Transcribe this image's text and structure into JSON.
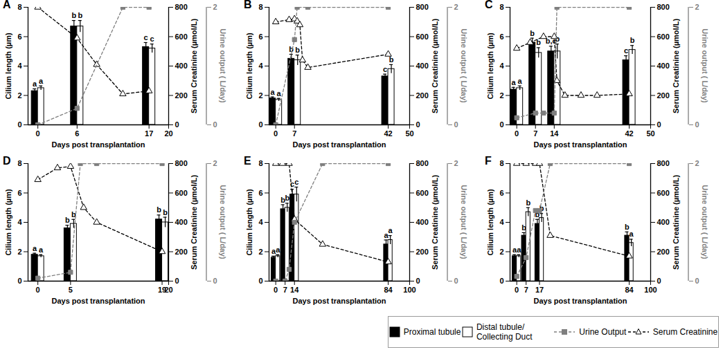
{
  "chart_data": [
    {
      "type": "bar",
      "title": "A",
      "x_label": "Days post transplantation",
      "y_label": "Cilium length (µm)",
      "y2_label": "Serum Creatinine (µmol/L)",
      "y3_label": "Urine output ( L/day)",
      "xlim": [
        -1.5,
        20
      ],
      "xticks": [
        0,
        6,
        17,
        20
      ],
      "ylim": [
        0,
        8
      ],
      "yticks": [
        0,
        2,
        4,
        6,
        8
      ],
      "y2lim": [
        0,
        800
      ],
      "y2ticks": [
        0,
        200,
        400,
        600,
        800
      ],
      "y3lim": [
        0,
        2
      ],
      "y3ticks": [
        0,
        2
      ],
      "x": [
        0,
        6,
        17
      ],
      "series": [
        {
          "name": "Proximal tubule",
          "type": "bar",
          "color": "#000000",
          "values": [
            2.3,
            6.7,
            5.3
          ],
          "errors": [
            0.15,
            0.4,
            0.3
          ],
          "labels": [
            "a",
            "b",
            "c"
          ]
        },
        {
          "name": "Distal tubule/ Collecting Duct",
          "type": "bar",
          "color": "#ffffff",
          "values": [
            2.5,
            6.7,
            5.2
          ],
          "errors": [
            0.15,
            0.4,
            0.3
          ],
          "labels": [
            "a",
            "b",
            "c"
          ]
        },
        {
          "name": "Urine Output",
          "type": "line",
          "axis": "y3",
          "color": "#7f7f7f",
          "marker": "square",
          "line_style": "dashed",
          "x": [
            0,
            6,
            13,
            17
          ],
          "values": [
            0,
            0.28,
            2,
            2
          ]
        },
        {
          "name": "Serum Creatinine",
          "type": "line",
          "axis": "y2",
          "color": "#000000",
          "marker": "open-triangle",
          "line_style": "dashed",
          "x": [
            0,
            6,
            9,
            13,
            17
          ],
          "values": [
            800,
            590,
            410,
            210,
            230
          ]
        }
      ]
    },
    {
      "type": "bar",
      "title": "B",
      "x_label": "Days post transplantation",
      "y_label": "Cilium length (µm)",
      "y2_label": "Serum Creatinine (µmol/L)",
      "y3_label": "Urine output ( L/day)",
      "xlim": [
        -2.5,
        50
      ],
      "xticks": [
        0,
        7,
        42,
        50
      ],
      "ylim": [
        0,
        8
      ],
      "yticks": [
        0,
        2,
        4,
        6,
        8
      ],
      "y2lim": [
        0,
        800
      ],
      "y2ticks": [
        0,
        200,
        400,
        600,
        800
      ],
      "y3lim": [
        0,
        2
      ],
      "y3ticks": [
        0,
        2
      ],
      "x": [
        0,
        7,
        42
      ],
      "series": [
        {
          "name": "Proximal tubule",
          "type": "bar",
          "color": "#000000",
          "values": [
            1.8,
            4.5,
            3.3
          ],
          "errors": [
            0.1,
            0.3,
            0.15
          ],
          "labels": [
            "a",
            "b",
            "c"
          ]
        },
        {
          "name": "Distal tubule/ Collecting Duct",
          "type": "bar",
          "color": "#ffffff",
          "values": [
            1.7,
            4.4,
            3.8
          ],
          "errors": [
            0.1,
            0.35,
            0.3
          ],
          "labels": [
            "a",
            "b",
            "b"
          ]
        },
        {
          "name": "Urine Output",
          "type": "line",
          "axis": "y3",
          "color": "#7f7f7f",
          "marker": "square",
          "line_style": "dashed",
          "x": [
            0,
            7,
            8,
            12,
            42
          ],
          "values": [
            0,
            1.45,
            2,
            2,
            2
          ]
        },
        {
          "name": "Serum Creatinine",
          "type": "line",
          "axis": "y2",
          "color": "#000000",
          "marker": "open-triangle",
          "line_style": "dashed",
          "x": [
            0,
            5,
            7,
            8,
            9,
            10,
            12,
            42
          ],
          "values": [
            700,
            715,
            720,
            705,
            680,
            440,
            390,
            480
          ]
        }
      ]
    },
    {
      "type": "bar",
      "title": "C",
      "x_label": "Days post transplantation",
      "y_label": "Cilium length (µm)",
      "y2_label": "Serum Creatinine (µmol/L)",
      "y3_label": "Urine output ( L/day)",
      "xlim": [
        -2.5,
        50
      ],
      "xticks": [
        0,
        7,
        14,
        42,
        50
      ],
      "ylim": [
        0,
        8
      ],
      "yticks": [
        0,
        2,
        4,
        6,
        8
      ],
      "y2lim": [
        0,
        800
      ],
      "y2ticks": [
        0,
        200,
        400,
        600,
        800
      ],
      "y3lim": [
        0,
        2
      ],
      "y3ticks": [
        0,
        2
      ],
      "x": [
        0,
        7,
        14,
        42
      ],
      "series": [
        {
          "name": "Proximal tubule",
          "type": "bar",
          "color": "#000000",
          "values": [
            2.4,
            5.6,
            5.0,
            4.4
          ],
          "errors": [
            0.15,
            0.3,
            0.35,
            0.3
          ],
          "labels": [
            "a",
            "b",
            "b,c",
            "c"
          ]
        },
        {
          "name": "Distal tubule/ Collecting Duct",
          "type": "bar",
          "color": "#ffffff",
          "values": [
            2.5,
            4.9,
            5.0,
            5.1
          ],
          "errors": [
            0.15,
            0.35,
            0.5,
            0.3
          ],
          "labels": [
            "a",
            "b",
            "b",
            "b"
          ]
        },
        {
          "name": "Urine Output",
          "type": "line",
          "axis": "y3",
          "color": "#7f7f7f",
          "marker": "square",
          "line_style": "dashed",
          "x": [
            0,
            7,
            10,
            14,
            15,
            42
          ],
          "values": [
            0.12,
            0.2,
            0.2,
            0.2,
            2,
            2
          ]
        },
        {
          "name": "Serum Creatinine",
          "type": "line",
          "axis": "y2",
          "color": "#000000",
          "marker": "open-triangle",
          "line_style": "dashed",
          "x": [
            0,
            5,
            10,
            14,
            15,
            18,
            24,
            30,
            42
          ],
          "values": [
            520,
            560,
            600,
            600,
            300,
            200,
            200,
            200,
            210
          ]
        }
      ]
    },
    {
      "type": "bar",
      "title": "D",
      "x_label": "Days post transplantation",
      "y_label": "Cilium length (µm)",
      "y2_label": "Serum Creatinine (µmol/L)",
      "y3_label": "Urine output ( L/day)",
      "xlim": [
        -1.5,
        20
      ],
      "xticks": [
        0,
        5,
        19,
        20
      ],
      "ylim": [
        0,
        8
      ],
      "yticks": [
        0,
        2,
        4,
        6,
        8
      ],
      "y2lim": [
        0,
        800
      ],
      "y2ticks": [
        0,
        200,
        400,
        600,
        800
      ],
      "y3lim": [
        0,
        2
      ],
      "y3ticks": [
        0,
        2
      ],
      "x": [
        0,
        5,
        19
      ],
      "series": [
        {
          "name": "Proximal tubule",
          "type": "bar",
          "color": "#000000",
          "values": [
            1.8,
            3.6,
            4.2
          ],
          "errors": [
            0.1,
            0.2,
            0.3
          ],
          "labels": [
            "a",
            "b",
            "b"
          ]
        },
        {
          "name": "Distal tubule/ Collecting Duct",
          "type": "bar",
          "color": "#ffffff",
          "values": [
            1.7,
            3.9,
            4.0
          ],
          "errors": [
            0.1,
            0.3,
            0.35
          ],
          "labels": [
            "a",
            "b",
            "b"
          ]
        },
        {
          "name": "Urine Output",
          "type": "line",
          "axis": "y3",
          "color": "#7f7f7f",
          "marker": "square",
          "line_style": "dashed",
          "x": [
            0,
            5,
            6.5,
            9,
            19
          ],
          "values": [
            0.05,
            0.15,
            2,
            2,
            2
          ]
        },
        {
          "name": "Serum Creatinine",
          "type": "line",
          "axis": "y2",
          "color": "#000000",
          "marker": "open-triangle",
          "line_style": "dashed",
          "x": [
            0,
            3,
            5,
            7,
            9,
            19
          ],
          "values": [
            690,
            770,
            780,
            500,
            400,
            200
          ]
        }
      ]
    },
    {
      "type": "bar",
      "title": "E",
      "x_label": "Days post transplantation",
      "y_label": "Cilium length (µm)",
      "y2_label": "Serum Creatinine (µmol/L)",
      "y3_label": "Urine output ( L/day)",
      "xlim": [
        -5,
        100
      ],
      "xticks": [
        0,
        7,
        14,
        84,
        100
      ],
      "ylim": [
        0,
        8
      ],
      "yticks": [
        0,
        2,
        4,
        6,
        8
      ],
      "y2lim": [
        0,
        800
      ],
      "y2ticks": [
        0,
        200,
        400,
        600,
        800
      ],
      "y3lim": [
        0,
        2
      ],
      "y3ticks": [
        0,
        2
      ],
      "x": [
        0,
        7,
        14,
        84
      ],
      "series": [
        {
          "name": "Proximal tubule",
          "type": "bar",
          "color": "#000000",
          "values": [
            1.6,
            4.9,
            5.9,
            2.5
          ],
          "errors": [
            0.1,
            0.3,
            0.35,
            0.3
          ],
          "labels": [
            "a",
            "b",
            "c",
            "a"
          ]
        },
        {
          "name": "Distal tubule/ Collecting Duct",
          "type": "bar",
          "color": "#ffffff",
          "values": [
            1.7,
            5.0,
            5.9,
            2.8
          ],
          "errors": [
            0.1,
            0.3,
            0.5,
            0.3
          ],
          "labels": [
            "a",
            "b",
            "c",
            "a"
          ]
        },
        {
          "name": "Urine Output",
          "type": "line",
          "axis": "y3",
          "color": "#7f7f7f",
          "marker": "square",
          "line_style": "dashed",
          "x": [
            0,
            7,
            10,
            14,
            35,
            84
          ],
          "values": [
            0,
            0,
            0.2,
            1,
            2,
            2
          ]
        },
        {
          "name": "Serum Creatinine",
          "type": "line",
          "axis": "y2",
          "color": "#000000",
          "marker": "open-triangle",
          "line_style": "dashed",
          "x": [
            0,
            5,
            10,
            14,
            35,
            84
          ],
          "values": [
            800,
            800,
            800,
            420,
            250,
            130
          ]
        }
      ]
    },
    {
      "type": "bar",
      "title": "F",
      "x_label": "Days post transplantation",
      "y_label": "Cilium length (µm)",
      "y2_label": "Serum Creatinine (µmol/L)",
      "y3_label": "Urine output ( L/day)",
      "xlim": [
        -5,
        100
      ],
      "xticks": [
        0,
        7,
        17,
        84,
        100
      ],
      "ylim": [
        0,
        8
      ],
      "yticks": [
        0,
        2,
        4,
        6,
        8
      ],
      "y2lim": [
        0,
        800
      ],
      "y2ticks": [
        0,
        200,
        400,
        600,
        800
      ],
      "y3lim": [
        0,
        2
      ],
      "y3ticks": [
        0,
        2
      ],
      "x": [
        0,
        7,
        17,
        84
      ],
      "series": [
        {
          "name": "Proximal tubule",
          "type": "bar",
          "color": "#000000",
          "values": [
            1.7,
            3.1,
            3.9,
            3.1
          ],
          "errors": [
            0.1,
            0.2,
            0.3,
            0.25
          ],
          "labels": [
            "a",
            "b",
            "b",
            "b"
          ]
        },
        {
          "name": "Distal tubule/ Collecting Duct",
          "type": "bar",
          "color": "#ffffff",
          "values": [
            1.7,
            4.7,
            4.3,
            2.6
          ],
          "errors": [
            0.1,
            0.3,
            0.3,
            0.25
          ],
          "labels": [
            "a",
            "b",
            "b",
            "a"
          ]
        },
        {
          "name": "Urine Output",
          "type": "line",
          "axis": "y3",
          "color": "#7f7f7f",
          "marker": "square",
          "line_style": "dashed",
          "x": [
            0,
            7,
            14,
            17,
            25,
            84
          ],
          "values": [
            0.08,
            0.4,
            1.2,
            1.2,
            2,
            2
          ]
        },
        {
          "name": "Serum Creatinine",
          "type": "line",
          "axis": "y2",
          "color": "#000000",
          "marker": "open-triangle",
          "line_style": "dashed",
          "x": [
            0,
            7,
            14,
            17,
            25,
            84
          ],
          "values": [
            800,
            800,
            800,
            800,
            310,
            170
          ]
        }
      ]
    }
  ]
}
